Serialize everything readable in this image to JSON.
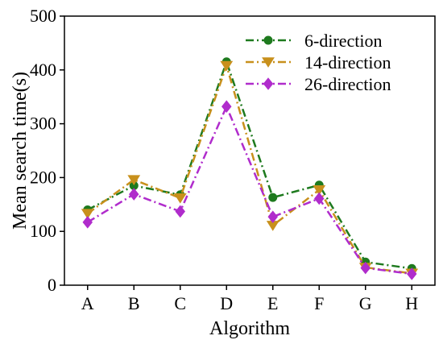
{
  "chart_data": {
    "type": "line",
    "categories": [
      "A",
      "B",
      "C",
      "D",
      "E",
      "F",
      "G",
      "H"
    ],
    "series": [
      {
        "name": "6-direction",
        "values": [
          140,
          185,
          168,
          415,
          163,
          186,
          43,
          31
        ],
        "color": "#1e7a1e",
        "marker": "circle"
      },
      {
        "name": "14-direction",
        "values": [
          133,
          196,
          162,
          408,
          111,
          177,
          33,
          22
        ],
        "color": "#c8901c",
        "marker": "triangle-down"
      },
      {
        "name": "26-direction",
        "values": [
          117,
          169,
          137,
          332,
          127,
          161,
          32,
          21
        ],
        "color": "#b02ccc",
        "marker": "diamond"
      }
    ],
    "xlabel": "Algorithm",
    "ylabel": "Mean search time(s)",
    "ylim": [
      0,
      500
    ],
    "yticks": [
      0,
      100,
      200,
      300,
      400,
      500
    ],
    "grid": false,
    "legend_position": "top-right"
  }
}
